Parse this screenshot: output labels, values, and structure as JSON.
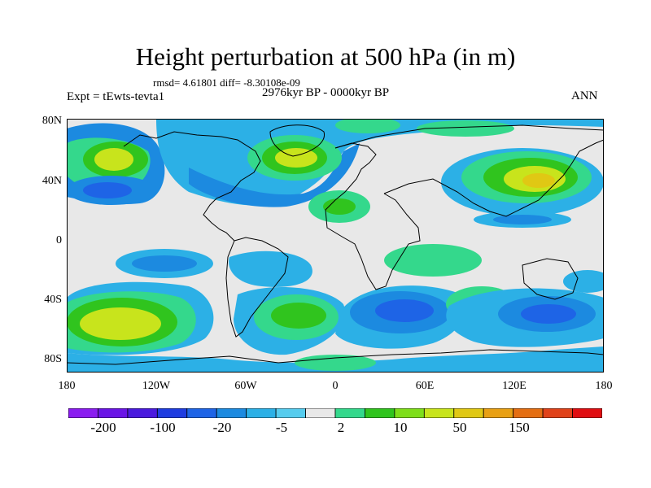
{
  "plot": {
    "title": "Height perturbation at 500 hPa (in m)",
    "stats": "rmsd= 4.61801 diff= -8.30108e-09",
    "experiment": "Expt = tEwts-tevta1",
    "period": "2976kyr BP - 0000kyr BP",
    "season": "ANN"
  },
  "axes": {
    "y_ticks": [
      "80N",
      "40N",
      "0",
      "40S",
      "80S"
    ],
    "x_ticks": [
      "180",
      "120W",
      "60W",
      "0",
      "60E",
      "120E",
      "180"
    ]
  },
  "colorbar": {
    "labels": [
      "-200",
      "-100",
      "-20",
      "-5",
      "2",
      "10",
      "50",
      "150"
    ],
    "colors": [
      "#8a1cf0",
      "#6a14e6",
      "#4a1ade",
      "#1e3ce0",
      "#1e64e6",
      "#1c8ae0",
      "#2cb0e6",
      "#56ccee",
      "#e8e8e8",
      "#34d88c",
      "#30c41e",
      "#7ede1a",
      "#c8e41c",
      "#e0c814",
      "#e8a014",
      "#e46e12",
      "#e0421a",
      "#e00e12"
    ]
  },
  "map": {
    "background_color": "#e8e8e8",
    "coast_color": "#000000"
  }
}
